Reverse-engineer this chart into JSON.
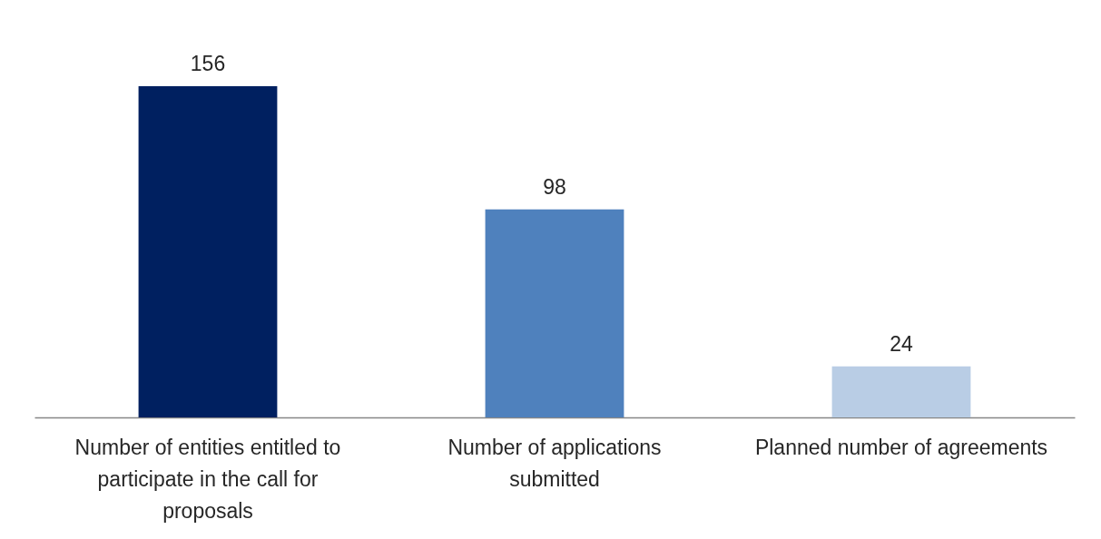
{
  "chart_data": {
    "type": "bar",
    "categories": [
      "Number of entities entitled to participate in the call for proposals",
      "Number of applications submitted",
      "Planned number of agreements"
    ],
    "values": [
      156,
      98,
      24
    ],
    "colors": [
      "#002060",
      "#4f81bd",
      "#b9cde5"
    ],
    "data_labels": true
  }
}
